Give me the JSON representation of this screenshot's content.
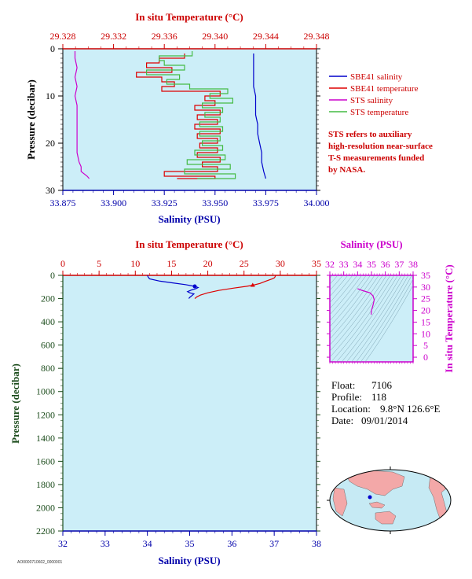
{
  "chart_data": [
    {
      "id": "top",
      "type": "line",
      "top_axis_label": "In situ Temperature (°C)",
      "bottom_axis_label": "Salinity (PSU)",
      "left_axis_label": "Pressure (decibar)",
      "temp_ticks": [
        "29.328",
        "29.332",
        "29.336",
        "29.340",
        "29.344",
        "29.348"
      ],
      "temp_range": [
        29.328,
        29.348
      ],
      "sal_ticks": [
        "33.875",
        "33.900",
        "33.925",
        "33.950",
        "33.975",
        "34.000"
      ],
      "sal_range": [
        33.875,
        34.0
      ],
      "pressure_ticks": [
        "0",
        "10",
        "20",
        "30"
      ],
      "pressure_range": [
        0,
        30
      ],
      "legend": [
        {
          "name": "SBE41 salinity",
          "color": "#0000cc"
        },
        {
          "name": "SBE41 temperature",
          "color": "#dd0000"
        },
        {
          "name": "STS salinity",
          "color": "#cc00cc"
        },
        {
          "name": "STS temperature",
          "color": "#44bb44"
        }
      ],
      "note_lines": [
        "STS refers to auxiliary",
        "high-resolution near-surface",
        "T-S measurements funded",
        "by NASA."
      ],
      "series": [
        {
          "name": "SBE41 salinity",
          "axis": "salinity",
          "color": "#0000cc",
          "p": [
            1,
            3,
            5,
            8,
            10,
            12,
            14,
            16,
            18,
            20,
            22,
            24,
            26,
            27.5
          ],
          "v": [
            33.969,
            33.969,
            33.969,
            33.969,
            33.97,
            33.97,
            33.97,
            33.971,
            33.971,
            33.972,
            33.973,
            33.973,
            33.974,
            33.975
          ]
        },
        {
          "name": "STS salinity",
          "axis": "salinity",
          "color": "#cc00cc",
          "p": [
            0.5,
            2,
            4,
            6,
            8,
            10,
            12,
            14,
            16,
            18,
            20,
            22,
            24,
            25,
            26,
            27,
            27.5
          ],
          "v": [
            33.881,
            33.881,
            33.882,
            33.881,
            33.882,
            33.881,
            33.882,
            33.882,
            33.882,
            33.882,
            33.882,
            33.882,
            33.883,
            33.884,
            33.884,
            33.887,
            33.888
          ]
        },
        {
          "name": "SBE41 temperature",
          "axis": "temperature",
          "color": "#dd0000",
          "p": [
            1,
            2,
            3,
            4,
            5,
            6,
            7,
            8,
            9,
            10,
            11,
            12,
            13,
            14,
            15,
            16,
            17,
            18,
            19,
            20,
            21,
            22,
            23,
            24,
            25,
            26,
            27,
            27.5
          ],
          "v": [
            29.3376,
            29.3356,
            29.3346,
            29.3366,
            29.3338,
            29.3358,
            29.3368,
            29.3358,
            29.3404,
            29.3392,
            29.34,
            29.3384,
            29.3404,
            29.3386,
            29.3402,
            29.3384,
            29.3404,
            29.3386,
            29.3402,
            29.3388,
            29.3402,
            29.3386,
            29.3404,
            29.339,
            29.3402,
            29.336,
            29.34,
            29.337
          ]
        },
        {
          "name": "STS temperature",
          "axis": "temperature",
          "color": "#44bb44",
          "p": [
            0.5,
            1.5,
            2.5,
            3.5,
            4.5,
            5.5,
            6.5,
            7.5,
            8.5,
            9.5,
            10.5,
            11.5,
            12.5,
            13.5,
            14.5,
            15.5,
            16.5,
            17.5,
            18.5,
            19.5,
            20.5,
            21.5,
            22.5,
            23.5,
            24.5,
            25.5,
            26.5,
            27.5
          ],
          "v": [
            29.3382,
            29.3356,
            29.336,
            29.3376,
            29.3346,
            29.3372,
            29.3362,
            29.338,
            29.341,
            29.3396,
            29.3414,
            29.339,
            29.3406,
            29.3392,
            29.3404,
            29.3388,
            29.3406,
            29.3388,
            29.3404,
            29.339,
            29.3406,
            29.3384,
            29.3408,
            29.3378,
            29.3412,
            29.3376,
            29.3416,
            29.3386
          ]
        }
      ]
    },
    {
      "id": "bottom",
      "type": "line",
      "top_axis_label": "In situ Temperature (°C)",
      "bottom_axis_label": "Salinity (PSU)",
      "left_axis_label": "Pressure (decibar)",
      "temp_ticks": [
        "0",
        "5",
        "10",
        "15",
        "20",
        "25",
        "30",
        "35"
      ],
      "temp_range": [
        0,
        35
      ],
      "sal_ticks": [
        "32",
        "33",
        "34",
        "35",
        "36",
        "37",
        "38"
      ],
      "sal_range": [
        32,
        38
      ],
      "pressure_ticks": [
        "0",
        "200",
        "400",
        "600",
        "800",
        "1000",
        "1200",
        "1400",
        "1600",
        "1800",
        "2000",
        "2200"
      ],
      "pressure_range": [
        0,
        2200
      ],
      "series": [
        {
          "name": "salinity",
          "axis": "salinity",
          "color": "#0000cc",
          "p": [
            0,
            15,
            30,
            50,
            65,
            80,
            95,
            105,
            115,
            125,
            140,
            150,
            160,
            175,
            190,
            200
          ],
          "v": [
            34.0,
            34.02,
            34.05,
            34.3,
            34.6,
            34.9,
            35.12,
            35.2,
            35.15,
            35.05,
            34.95,
            35.0,
            35.1,
            35.05,
            35.0,
            34.98
          ],
          "marker": {
            "p": 95,
            "v": 35.12
          }
        },
        {
          "name": "temperature",
          "axis": "temperature",
          "color": "#dd0000",
          "p": [
            0,
            10,
            20,
            30,
            50,
            70,
            85,
            95,
            110,
            130,
            150,
            170,
            185,
            195,
            200
          ],
          "v": [
            29.34,
            29.3,
            29.2,
            28.9,
            28.0,
            27.2,
            26.2,
            25.3,
            23.5,
            21.5,
            20.0,
            19.0,
            18.5,
            18.3,
            18.2
          ],
          "marker": {
            "p": 85,
            "v": 26.2
          }
        }
      ]
    },
    {
      "id": "ts",
      "type": "line",
      "top_axis_label": "Salinity (PSU)",
      "right_axis_label": "In situ Temperature (°C)",
      "sal_ticks": [
        "32",
        "33",
        "34",
        "35",
        "36",
        "37",
        "38"
      ],
      "sal_range": [
        32,
        38
      ],
      "temp_ticks": [
        "0",
        "5",
        "10",
        "15",
        "20",
        "25",
        "30",
        "35"
      ],
      "temp_range": [
        -2,
        35
      ],
      "series": [
        {
          "name": "T-S",
          "color": "#cc00cc",
          "s": [
            34.0,
            34.3,
            34.9,
            35.12,
            35.2,
            35.1,
            35.0,
            34.98
          ],
          "t": [
            29.3,
            28.6,
            27.5,
            26.2,
            24.5,
            22.0,
            20.0,
            18.2
          ]
        }
      ]
    }
  ],
  "info": {
    "float_label": "Float:",
    "float_value": "7106",
    "profile_label": "Profile:",
    "profile_value": "118",
    "location_label": "Location:",
    "location_value": "9.8°N  126.6°E",
    "date_label": "Date:",
    "date_value": "09/01/2014"
  },
  "footer_code": "AO0000710602_0000001",
  "colors": {
    "plot_bg": "#cceef8",
    "red": "#cc0000",
    "blue": "#0000aa",
    "magenta": "#cc00cc",
    "green": "#1d4d1d"
  },
  "map": {
    "ocean": "#c6eaf4",
    "land": "#f3a8a8",
    "marker": "#0000cc"
  }
}
